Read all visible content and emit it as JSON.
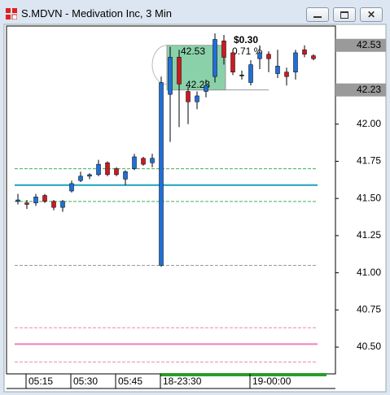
{
  "window": {
    "title": "S.MDVN - Medivation Inc, 3 Min"
  },
  "chart_data": {
    "type": "candlestick",
    "categories": [
      null,
      "05:15",
      null,
      null,
      null,
      null,
      "05:30",
      null,
      null,
      null,
      null,
      "05:45",
      null,
      null,
      null,
      null,
      "18-23:30",
      null,
      null,
      null,
      null,
      null,
      null,
      null,
      null,
      null,
      "19-00:00",
      null,
      null,
      null,
      null,
      null,
      null,
      null
    ],
    "open": [
      41.48,
      41.47,
      41.47,
      41.52,
      41.48,
      41.44,
      41.55,
      41.62,
      41.65,
      41.66,
      41.74,
      41.7,
      41.63,
      41.7,
      41.77,
      41.74,
      41.05,
      42.2,
      42.45,
      42.22,
      42.15,
      42.22,
      42.32,
      42.56,
      42.48,
      42.33,
      42.28,
      42.44,
      42.47,
      42.34,
      42.35,
      42.35,
      42.5,
      42.46
    ],
    "high": [
      41.53,
      41.49,
      41.53,
      41.53,
      41.49,
      41.49,
      41.62,
      41.68,
      41.67,
      41.76,
      41.75,
      41.71,
      41.69,
      41.8,
      41.78,
      41.8,
      42.32,
      42.52,
      42.5,
      42.25,
      42.22,
      42.3,
      42.61,
      42.6,
      42.5,
      42.36,
      42.43,
      42.53,
      42.49,
      42.5,
      42.38,
      42.5,
      42.53,
      42.47
    ],
    "low": [
      41.46,
      41.43,
      41.45,
      41.47,
      41.42,
      41.41,
      41.54,
      41.61,
      41.63,
      41.65,
      41.65,
      41.65,
      41.59,
      41.69,
      41.72,
      41.71,
      41.04,
      41.88,
      41.98,
      42.0,
      42.1,
      42.18,
      42.28,
      42.4,
      42.33,
      42.3,
      42.26,
      42.37,
      42.35,
      42.31,
      42.26,
      42.3,
      42.45,
      42.43
    ],
    "close": [
      41.49,
      41.46,
      41.51,
      41.48,
      41.44,
      41.48,
      41.6,
      41.65,
      41.66,
      41.73,
      41.66,
      41.66,
      41.68,
      41.78,
      41.73,
      41.77,
      42.28,
      42.45,
      42.27,
      42.15,
      42.19,
      42.26,
      42.57,
      42.45,
      42.35,
      42.33,
      42.4,
      42.48,
      42.44,
      42.39,
      42.32,
      42.48,
      42.47,
      42.44
    ],
    "up_color": "#1f6fd8",
    "down_color": "#cc1a22",
    "ylim": [
      40.32,
      42.66
    ],
    "yticks": [
      {
        "value": 40.5,
        "label": "40.50"
      },
      {
        "value": 40.75,
        "label": "40.75"
      },
      {
        "value": 41,
        "label": "41.00"
      },
      {
        "value": 41.25,
        "label": "41.25"
      },
      {
        "value": 41.5,
        "label": "41.50"
      },
      {
        "value": 41.75,
        "label": "41.75"
      },
      {
        "value": 42,
        "label": "42.00"
      }
    ],
    "lines": [
      {
        "value": 41.7,
        "color": "#3cb44b",
        "style": "dashed"
      },
      {
        "value": 41.59,
        "color": "#1aa3b8",
        "style": "solid"
      },
      {
        "value": 41.48,
        "color": "#3cb44b",
        "style": "dashed"
      },
      {
        "value": 41.05,
        "color": "#999999",
        "style": "dashed"
      },
      {
        "value": 40.63,
        "color": "#ee82b4",
        "style": "dashed"
      },
      {
        "value": 40.52,
        "color": "#ee82b4",
        "style": "solid"
      },
      {
        "value": 40.4,
        "color": "#ee82b4",
        "style": "dashed"
      }
    ],
    "price_tags": [
      42.53,
      42.23
    ],
    "measure": {
      "high": 42.53,
      "low": 42.23,
      "change": {
        "value": 0.3,
        "label": "$0.30"
      },
      "percent": {
        "value": 0.71,
        "label": "0.71 %"
      }
    }
  }
}
